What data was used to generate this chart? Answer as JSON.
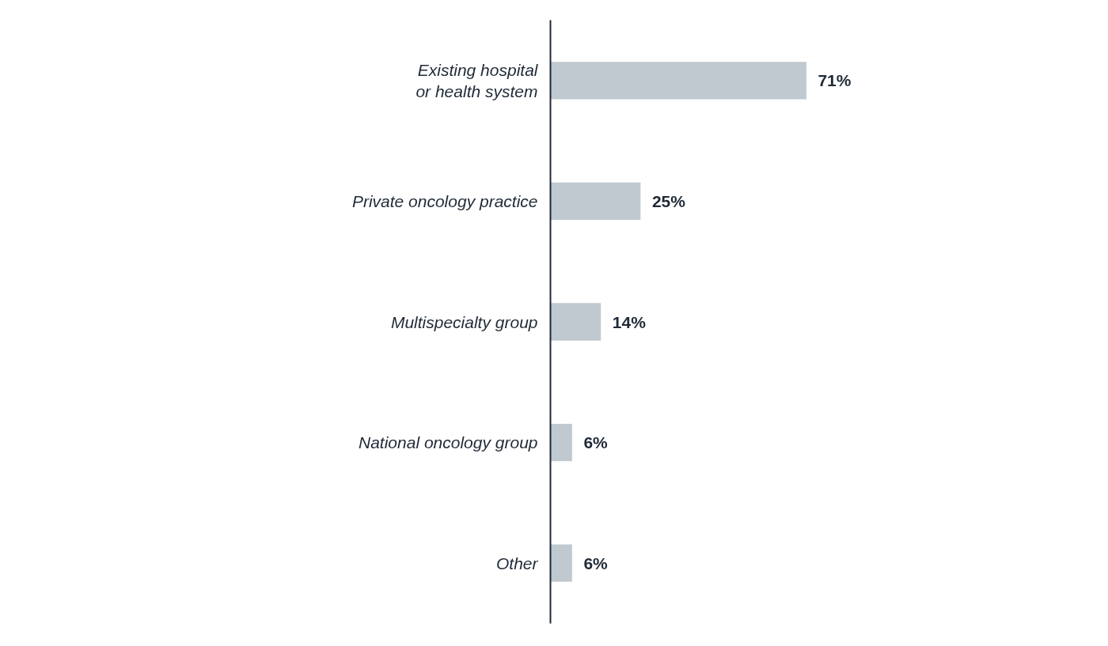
{
  "chart_data": {
    "type": "bar",
    "orientation": "horizontal",
    "categories": [
      "Existing hospital\nor health system",
      "Private oncology practice",
      "Multispecialty group",
      "National oncology group",
      "Other"
    ],
    "values": [
      71,
      25,
      14,
      6,
      6
    ],
    "value_labels": [
      "71%",
      "25%",
      "14%",
      "6%",
      "6%"
    ],
    "color": "#c0c9cf",
    "grid": false
  }
}
